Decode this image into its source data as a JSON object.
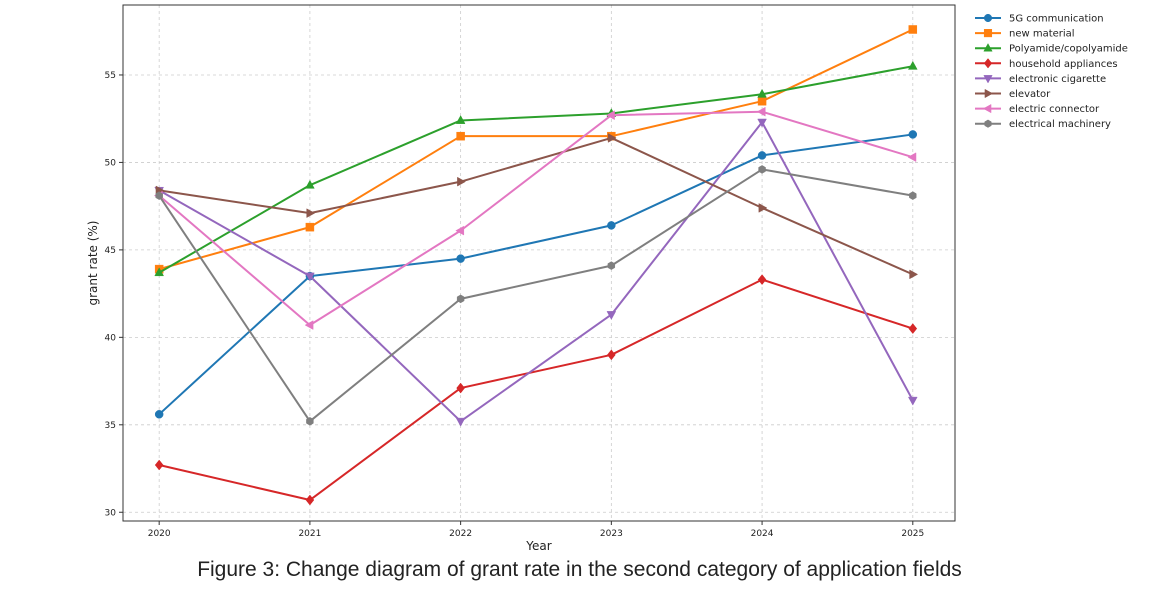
{
  "caption": "Figure 3: Change diagram of grant rate in the second category of application fields",
  "chart_data": {
    "type": "line",
    "title": "",
    "xlabel": "Year",
    "ylabel": "grant rate (%)",
    "x": [
      2020,
      2021,
      2022,
      2023,
      2024,
      2025
    ],
    "xlim": [
      2019.76,
      2025.28
    ],
    "ylim": [
      29.5,
      59.0
    ],
    "yticks": [
      30,
      35,
      40,
      45,
      50,
      55
    ],
    "grid": true,
    "legend_position": "outside-top-right",
    "series": [
      {
        "name": "5G communication",
        "color": "#1f77b4",
        "marker": "circle",
        "values": [
          35.6,
          43.5,
          44.5,
          46.4,
          50.4,
          51.6
        ]
      },
      {
        "name": "new material",
        "color": "#ff7f0e",
        "marker": "square",
        "values": [
          43.9,
          46.3,
          51.5,
          51.5,
          53.5,
          57.6
        ]
      },
      {
        "name": "Polyamide/copolyamide",
        "color": "#2ca02c",
        "marker": "triangle-up",
        "values": [
          43.7,
          48.7,
          52.4,
          52.8,
          53.9,
          55.5
        ]
      },
      {
        "name": "household appliances",
        "color": "#d62728",
        "marker": "diamond",
        "values": [
          32.7,
          30.7,
          37.1,
          39.0,
          43.3,
          40.5
        ]
      },
      {
        "name": "electronic cigarette",
        "color": "#9467bd",
        "marker": "triangle-down",
        "values": [
          48.4,
          43.5,
          35.2,
          41.3,
          52.3,
          36.4
        ]
      },
      {
        "name": "elevator",
        "color": "#8c564b",
        "marker": "triangle-right",
        "values": [
          48.4,
          47.1,
          48.9,
          51.4,
          47.4,
          43.6
        ]
      },
      {
        "name": "electric connector",
        "color": "#e377c2",
        "marker": "triangle-left",
        "values": [
          48.1,
          40.7,
          46.1,
          52.7,
          52.9,
          50.3
        ]
      },
      {
        "name": "electrical machinery",
        "color": "#7f7f7f",
        "marker": "hexagon",
        "values": [
          48.1,
          35.2,
          42.2,
          44.1,
          49.6,
          48.1
        ]
      }
    ]
  }
}
